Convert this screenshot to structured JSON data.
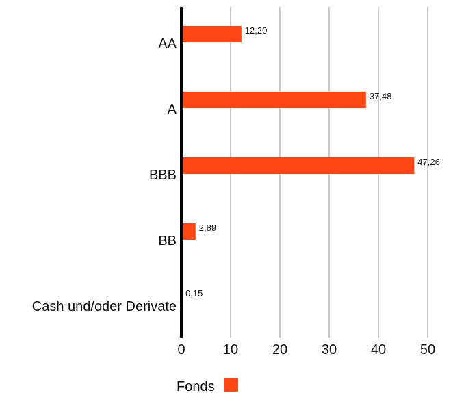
{
  "chart_data": {
    "type": "bar",
    "orientation": "horizontal",
    "categories": [
      "AA",
      "A",
      "BBB",
      "BB",
      "Cash und/oder Derivate"
    ],
    "series": [
      {
        "name": "Fonds",
        "values": [
          12.2,
          37.48,
          47.26,
          2.89,
          0.15
        ],
        "color": "#ff4713"
      }
    ],
    "data_labels": [
      "12,20",
      "37,48",
      "47,26",
      "2,89",
      "0,15"
    ],
    "xlim": [
      0,
      50
    ],
    "xticks": [
      "0",
      "10",
      "20",
      "30",
      "40",
      "50"
    ],
    "grid": "vertical",
    "legend_position": "bottom-center"
  }
}
